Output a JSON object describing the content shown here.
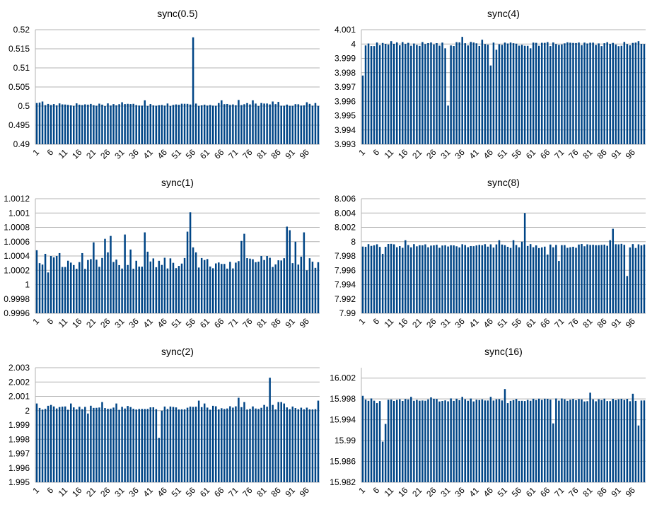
{
  "chart_data": [
    {
      "type": "bar",
      "title": "sync(0.5)",
      "ylim": [
        0.49,
        0.52
      ],
      "yticks": [
        "0.52",
        "0.515",
        "0.51",
        "0.505",
        "0.5",
        "0.495",
        "0.49"
      ],
      "n": 100,
      "base": 0.5004,
      "jitter": 0.0004,
      "spikes": {
        "1": 0.5008,
        "2": 0.5009,
        "3": 0.5012,
        "9": 0.5007,
        "26": 0.5007,
        "31": 0.501,
        "39": 0.5015,
        "56": 0.518,
        "66": 0.5015,
        "72": 0.5016,
        "77": 0.5015,
        "84": 0.5012,
        "86": 0.5011,
        "96": 0.501
      }
    },
    {
      "type": "bar",
      "title": "sync(4)",
      "ylim": [
        3.993,
        4.001
      ],
      "yticks": [
        "4.001",
        "4",
        "3.999",
        "3.998",
        "3.997",
        "3.996",
        "3.995",
        "3.994",
        "3.993"
      ],
      "n": 100,
      "base": 4.0,
      "jitter": 0.00015,
      "spikes": {
        "1": 3.9978,
        "2": 3.9999,
        "11": 4.0002,
        "29": 4.0001,
        "30": 3.9997,
        "31": 3.9957,
        "32": 3.9999,
        "36": 4.0005,
        "43": 4.0003,
        "46": 3.9985,
        "47": 4.0001,
        "48": 3.9996,
        "60": 3.9997,
        "61": 4.0001,
        "98": 4.0002,
        "100": 4.0
      }
    },
    {
      "type": "bar",
      "title": "sync(1)",
      "ylim": [
        0.9996,
        1.0012
      ],
      "yticks": [
        "1.0012",
        "1.001",
        "1.0008",
        "1.0006",
        "1.0004",
        "1.0002",
        "1",
        "0.9998",
        "0.9996"
      ],
      "n": 100,
      "base": 1.0003,
      "jitter": 8e-05,
      "spikes": {
        "1": 1.00048,
        "2": 1.0003,
        "3": 1.00028,
        "4": 1.00043,
        "5": 1.00017,
        "6": 1.0004,
        "7": 1.00038,
        "8": 1.0004,
        "9": 1.00044,
        "17": 1.00044,
        "18": 1.00022,
        "21": 1.00059,
        "25": 1.00064,
        "26": 1.00045,
        "27": 1.00068,
        "32": 1.0007,
        "34": 1.00049,
        "39": 1.00073,
        "40": 1.00046,
        "54": 1.00074,
        "55": 1.00101,
        "56": 1.00052,
        "57": 1.00045,
        "73": 1.00061,
        "74": 1.00071,
        "75": 1.00037,
        "80": 1.0004,
        "82": 1.0004,
        "89": 1.00081,
        "90": 1.00076,
        "91": 1.0003,
        "92": 1.0006,
        "94": 1.00039,
        "95": 1.00073,
        "96": 1.0002
      }
    },
    {
      "type": "bar",
      "title": "sync(8)",
      "ylim": [
        7.99,
        8.006
      ],
      "yticks": [
        "8.006",
        "8.004",
        "8.002",
        "8",
        "7.998",
        "7.996",
        "7.994",
        "7.992",
        "7.99"
      ],
      "n": 100,
      "base": 7.9994,
      "jitter": 0.0003,
      "spikes": {
        "8": 7.9983,
        "16": 8.0002,
        "49": 8.0002,
        "54": 8.0002,
        "57": 8.0,
        "58": 8.004,
        "59": 7.9994,
        "66": 7.9982,
        "70": 7.9973,
        "88": 8.0002,
        "89": 8.0018,
        "94": 7.9952
      }
    },
    {
      "type": "bar",
      "title": "sync(2)",
      "ylim": [
        1.995,
        2.003
      ],
      "yticks": [
        "2.003",
        "2.002",
        "2.001",
        "2",
        "1.999",
        "1.998",
        "1.997",
        "1.996",
        "1.995"
      ],
      "n": 100,
      "base": 2.0002,
      "jitter": 0.00015,
      "spikes": {
        "1": 2.0005,
        "6": 2.0004,
        "13": 2.0005,
        "19": 1.9998,
        "24": 2.0006,
        "29": 2.0005,
        "44": 1.9981,
        "45": 2.0,
        "58": 2.0007,
        "60": 2.0005,
        "72": 2.0009,
        "74": 2.0006,
        "81": 2.0004,
        "83": 2.0023,
        "84": 2.0004,
        "86": 2.0006,
        "87": 2.0006,
        "88": 2.0005,
        "100": 2.0007
      }
    },
    {
      "type": "bar",
      "title": "sync(16)",
      "ylim": [
        15.982,
        16.004
      ],
      "yticks": [
        "16.002",
        "15.998",
        "15.994",
        "15.99",
        "15.986",
        "15.982"
      ],
      "ytickvals": [
        16.002,
        15.998,
        15.994,
        15.99,
        15.986,
        15.982
      ],
      "n": 100,
      "base": 15.9978,
      "jitter": 0.0003,
      "spikes": {
        "1": 15.9986,
        "6": 15.9972,
        "7": 15.9976,
        "8": 15.9898,
        "9": 15.9932,
        "18": 15.9984,
        "25": 15.9983,
        "36": 15.9984,
        "46": 15.9984,
        "51": 15.9999,
        "52": 15.9972,
        "68": 15.9933,
        "81": 15.9992,
        "96": 15.999,
        "98": 15.9929,
        "99": 15.9977
      }
    }
  ],
  "xtick_labels": [
    "1",
    "6",
    "11",
    "16",
    "21",
    "26",
    "31",
    "36",
    "41",
    "46",
    "51",
    "56",
    "61",
    "66",
    "71",
    "76",
    "81",
    "86",
    "91",
    "96"
  ]
}
